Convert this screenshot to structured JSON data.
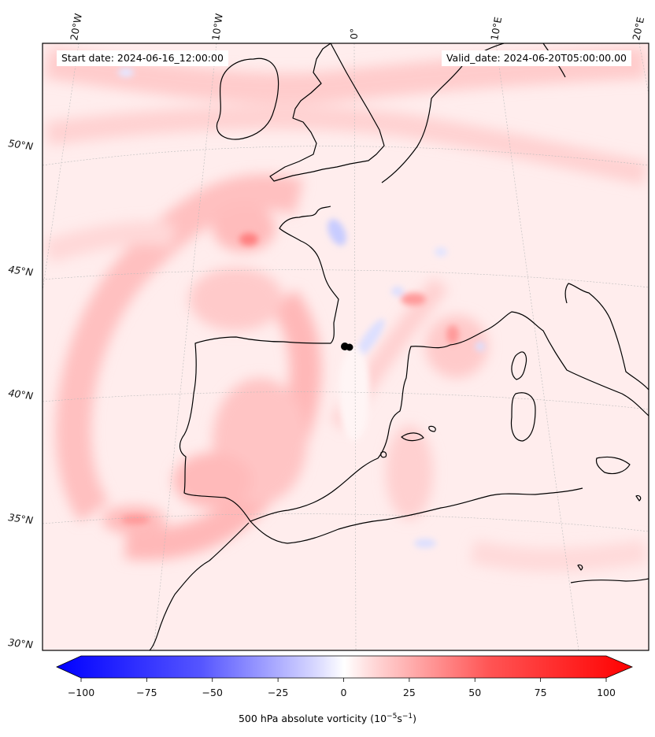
{
  "header": {
    "start_label": "Start date: 2024-06-16_12:00:00",
    "valid_label": "Valid_date: 2024-06-20T05:00:00.00"
  },
  "map": {
    "projection": "Lambert conformal (ECMWF style)",
    "longitude_labels": [
      "20°W",
      "10°W",
      "0°",
      "10°E",
      "20°E"
    ],
    "latitude_labels": [
      "50°N",
      "45°N",
      "40°N",
      "35°N",
      "30°N"
    ],
    "field": "500 hPa absolute vorticity",
    "field_max_color": "#ff0000",
    "field_min_color": "#0000ff",
    "coastline_color": "#000000",
    "marker_color": "#000000"
  },
  "colorbar": {
    "min": -100,
    "max": 100,
    "ticks": [
      "−100",
      "−75",
      "−50",
      "−25",
      "0",
      "25",
      "50",
      "75",
      "100"
    ],
    "label_text": "500 hPa absolute vorticity (10",
    "label_exp1": "−5",
    "label_mid": "s",
    "label_exp2": "−1",
    "label_end": ")",
    "extend": "both",
    "cmap": "bwr"
  }
}
